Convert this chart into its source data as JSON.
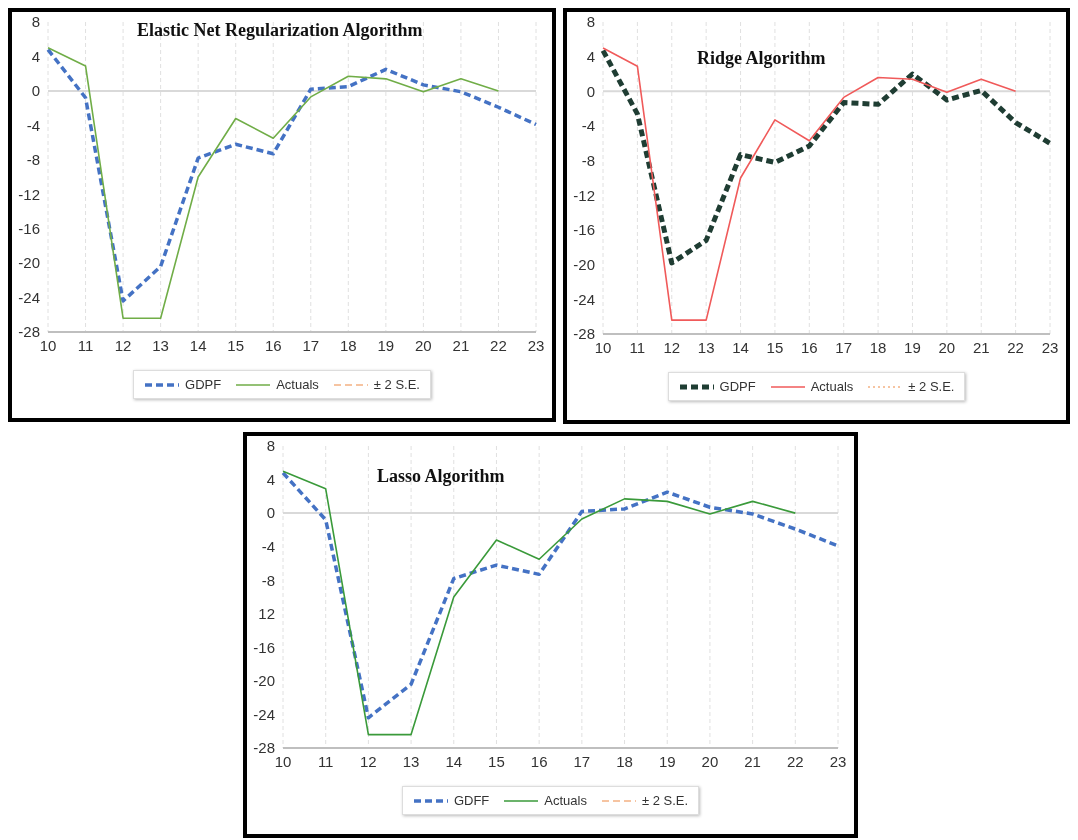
{
  "chart_data": [
    {
      "type": "line",
      "title": "Elastic Net Regularization Algorithm",
      "categories": [
        "10",
        "11",
        "12",
        "13",
        "14",
        "15",
        "16",
        "17",
        "18",
        "19",
        "20",
        "21",
        "22",
        "23"
      ],
      "series": [
        {
          "name": "GDPF",
          "color": "#4472c4",
          "line_style": "dashed",
          "values": [
            4.8,
            -0.8,
            -24.4,
            -20.4,
            -7.8,
            -6.2,
            -7.3,
            0.2,
            0.5,
            2.5,
            0.7,
            -0.1,
            -1.9,
            -3.9
          ]
        },
        {
          "name": "Actuals",
          "color": "#70ad47",
          "line_style": "solid",
          "values": [
            5.0,
            2.9,
            -26.4,
            -26.4,
            -10,
            -3.2,
            -5.5,
            -0.7,
            1.7,
            1.4,
            -0.1,
            1.4,
            0,
            null
          ]
        },
        {
          "name": "± 2 S.E.",
          "color": "#f4b183",
          "line_style": "dashed",
          "values": [
            null,
            null,
            null,
            null,
            null,
            null,
            null,
            null,
            null,
            null,
            null,
            null,
            null,
            null
          ]
        }
      ],
      "ylim": [
        -28,
        8
      ],
      "yticks": [
        -28,
        -24,
        -20,
        -16,
        -12,
        -8,
        -4,
        0,
        4,
        8
      ],
      "grid": "x",
      "legend": "bottom",
      "marker": "none",
      "ref_lines": [
        {
          "axis": "y",
          "value": 0,
          "color": "#d9d9d9"
        }
      ]
    },
    {
      "type": "line",
      "title": "Ridge Algorithm",
      "categories": [
        "10",
        "11",
        "12",
        "13",
        "14",
        "15",
        "16",
        "17",
        "18",
        "19",
        "20",
        "21",
        "22",
        "23"
      ],
      "series": [
        {
          "name": "GDPF",
          "color": "#1f3d33",
          "line_style": "dashed",
          "values": [
            4.7,
            -2.6,
            -19.8,
            -17.2,
            -7.3,
            -8.2,
            -6.3,
            -1.3,
            -1.5,
            2.0,
            -1.0,
            0.1,
            -3.6,
            -6.0
          ]
        },
        {
          "name": "Actuals",
          "color": "#f05a5a",
          "line_style": "solid",
          "values": [
            5.0,
            2.9,
            -26.4,
            -26.4,
            -10,
            -3.3,
            -5.7,
            -0.7,
            1.6,
            1.4,
            -0.1,
            1.4,
            0,
            null
          ]
        },
        {
          "name": "± 2 S.E.",
          "color": "#f4b183",
          "line_style": "dotted",
          "values": [
            null,
            null,
            null,
            null,
            null,
            null,
            null,
            null,
            null,
            null,
            null,
            null,
            null,
            null
          ]
        }
      ],
      "ylim": [
        -28,
        8
      ],
      "yticks": [
        -28,
        -24,
        -20,
        -16,
        -12,
        -8,
        -4,
        0,
        4,
        8
      ],
      "grid": "x",
      "legend": "bottom",
      "marker": "none",
      "ref_lines": [
        {
          "axis": "y",
          "value": 0,
          "color": "#d9d9d9"
        }
      ]
    },
    {
      "type": "line",
      "title": "Lasso Algorithm",
      "categories": [
        "10",
        "11",
        "12",
        "13",
        "14",
        "15",
        "16",
        "17",
        "18",
        "19",
        "20",
        "21",
        "22",
        "23"
      ],
      "series": [
        {
          "name": "GDFF",
          "color": "#4472c4",
          "line_style": "dashed",
          "values": [
            4.8,
            -0.8,
            -24.4,
            -20.4,
            -7.8,
            -6.2,
            -7.3,
            0.2,
            0.5,
            2.5,
            0.7,
            -0.1,
            -1.9,
            -3.9
          ]
        },
        {
          "name": "Actuals",
          "color": "#3a9a3a",
          "line_style": "solid",
          "values": [
            5.0,
            2.9,
            -26.4,
            -26.4,
            -10,
            -3.2,
            -5.5,
            -0.7,
            1.7,
            1.4,
            -0.1,
            1.4,
            0,
            null
          ]
        },
        {
          "name": "± 2 S.E.",
          "color": "#f4b183",
          "line_style": "dashed",
          "values": [
            null,
            null,
            null,
            null,
            null,
            null,
            null,
            null,
            null,
            null,
            null,
            null,
            null,
            null
          ]
        }
      ],
      "ylim": [
        -28,
        8
      ],
      "yticks": [
        -28,
        -24,
        -20,
        -16,
        {
          "value": -12,
          "label": "12"
        },
        -8,
        -4,
        0,
        4,
        8
      ],
      "grid": "x",
      "legend": "bottom",
      "marker": "none",
      "ref_lines": [
        {
          "axis": "y",
          "value": 0,
          "color": "#d9d9d9"
        }
      ]
    }
  ]
}
